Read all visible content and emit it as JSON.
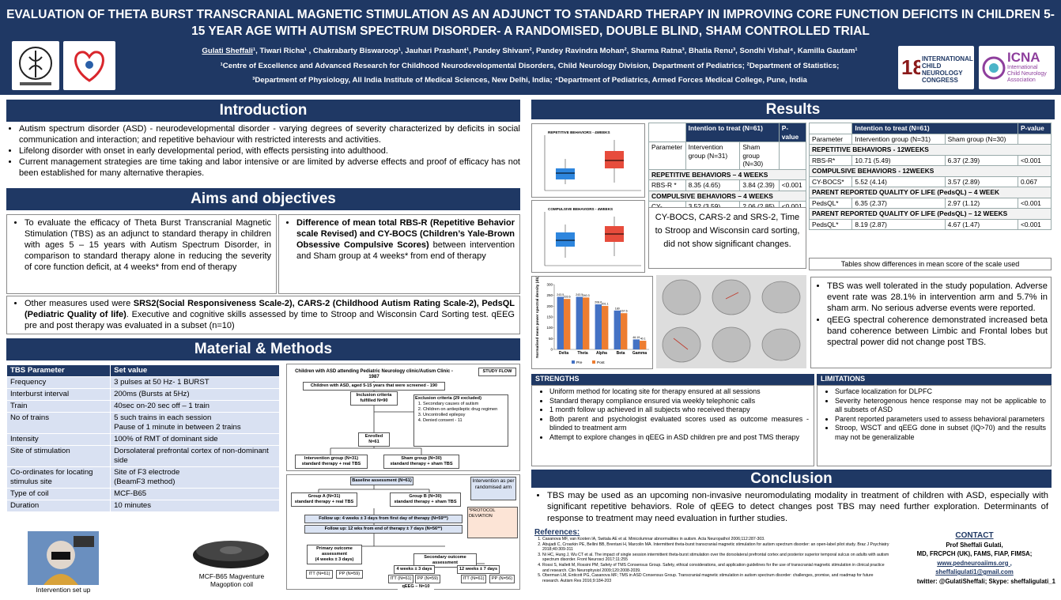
{
  "header": {
    "title": "EVALUATION OF  THETA BURST  TRANSCRANIAL MAGNETIC STIMULATION AS AN ADJUNCT TO STANDARD THERAPY IN IMPROVING CORE FUNCTION DEFICITS IN CHILDREN 5-15 YEAR AGE WITH AUTISM SPECTRUM DISORDER-  A RANDOMISED, DOUBLE BLIND, SHAM CONTROLLED TRIAL",
    "lead_author": "Gulati Sheffali",
    "authors": "¹, Tiwari Richa¹ , Chakrabarty Biswaroop¹, Jauhari Prashant¹, Pandey Shivam², Pandey Ravindra Mohan², Sharma Ratna³, Bhatia Renu³, Sondhi Vishal⁴, Kamilla Gautam¹",
    "affiliation_1": "¹Centre of Excellence and Advanced Research for Childhood Neurodevelopmental Disorders, Child Neurology Division, Department of Pediatrics; ²Department of Statistics;",
    "affiliation_2": "³Department of Physiology, All India Institute of Medical Sciences, New Delhi, India; ⁴Department of Pediatrics, Armed Forces Medical College, Pune, India",
    "congress_logo": "INTERNATIONAL CHILD NEUROLOGY CONGRESS",
    "icna_logo": "ICNA",
    "icna_name": "International Child Neurology Association"
  },
  "introduction": {
    "heading": "Introduction",
    "bullets": [
      "Autism spectrum disorder (ASD) - neurodevelopmental disorder - varying degrees of severity characterized by deficits in social communication and interaction; and repetitive behaviour with restricted interests and activities.",
      "Lifelong disorder with onset in early developmental period, with effects persisting into adulthood.",
      "Current management strategies are time taking and labor intensive or are limited by adverse effects and proof of efficacy has not been established for many alternative therapies."
    ]
  },
  "aims": {
    "heading": "Aims and objectives",
    "primary": "To evaluate the efficacy of Theta Burst Transcranial Magnetic Stimulation (TBS) as an adjunct to standard therapy in children with ages 5 – 15 years with Autism Spectrum Disorder,  in comparison to standard therapy alone in reducing the severity of core function deficit, at 4 weeks*  from end of therapy",
    "outcome_bold": "Difference of mean total RBS-R (Repetitive Behavior scale Revised) and CY-BOCS (Children’s Yale-Brown Obsessive Compulsive Scores)",
    "outcome_rest": " between intervention and Sham group at 4 weeks* from end of therapy",
    "other_start": "Other measures used were ",
    "other_bold": "SRS2(Social Responsiveness Scale-2), CARS-2 (Childhood Autism Rating Scale-2), PedsQL (Pediatric Quality of life)",
    "other_rest": ". Executive and cognitive skills assessed by time to Stroop and Wisconsin Card Sorting test. qEEG pre and post therapy was evaluated in a subset (n=10)"
  },
  "methods": {
    "heading": "Material & Methods",
    "table": [
      [
        "TBS Parameter",
        "Set value"
      ],
      [
        "Frequency",
        "3 pulses at 50 Hz- 1 BURST"
      ],
      [
        "Interburst interval",
        "200ms (Bursts at 5Hz)"
      ],
      [
        "Train",
        "40sec on-20 sec off – 1 train"
      ],
      [
        "No of trains",
        "5 such trains in each session\nPause of 1 minute in between 2 trains"
      ],
      [
        "Intensity",
        "100% of RMT of dominant side"
      ],
      [
        "Site of stimulation",
        "Dorsolateral prefrontal cortex of non-dominant side"
      ],
      [
        "Co-ordinates for locating stimulus site",
        " Site of F3 electrode\n(BeamF3 method)"
      ],
      [
        "Type of coil",
        "MCF-B65"
      ],
      [
        "Duration",
        "10 minutes"
      ]
    ],
    "photo_caption": "Intervention set up",
    "coil_caption": "MCF-B65 Magventure\nMagoption coil",
    "flow1": {
      "top": "Children with ASD attending Pediatric Neurology clinic/Autism Clinic - 1987",
      "label": "STUDY FLOW",
      "screened": "Children with ASD, aged 5-15 years that were screened - 190",
      "inclusion": "Inclusion criteria\nfulfilled N=90",
      "exclusion_title": "Exclusion criteria (29 excluded)",
      "exclusion": [
        "Secondary causes of autism",
        "Children on antiepileptic drug regimen",
        "Uncontrolled epilepsy",
        "Denied consent - 11"
      ],
      "enrolled": "Enrolled\nN=61",
      "intervention": "Intervention group (N=31)\nstandard therapy + real TBS",
      "sham": "Sham group (N=30)\nstandard therapy + sham TBS"
    },
    "flow2": {
      "baseline": "Baseline assessment (N=61)",
      "arm": "Intervention as per randomised arm",
      "group_a": "Group A (N=31)\nstandard therapy + real TBS",
      "group_b": "Group B (N=30)\nstandard therapy + sham TBS",
      "fu1": "Follow up: 4 weeks ± 3 days from first day of therapy (N=59**)",
      "fu2": "Follow up: 12 wks from end of therapy ± 7 days (N=56**)",
      "note": "*PROTOCOL DEVIATION",
      "primary": "Primary outcome assessment\n(4 weeks ± 3 days)",
      "secondary": "Secondary outcome assessment",
      "w4": "4 weeks ± 3 days",
      "w12": "12 weeks ± 7 days",
      "itt1": "ITT (N=61)",
      "pp1": "PP (N=59)",
      "itt2": "ITT (N=61)",
      "pp2": "PP (N=59)",
      "itt3": "ITT (N=61)",
      "pp3": "PP (N=56)",
      "qeeg": "qEEG – N=10"
    }
  },
  "results": {
    "heading": "Results",
    "boxplot_1": "REPETITIVE BEHAVIORS - 4WEEKS",
    "boxplot_2": "COMPULSIVE BEHAVIORS - 4WEEKS",
    "table_head": {
      "itt": "Intention to treat (N=61)",
      "p": "P-value",
      "param": "Parameter",
      "int": "Intervention group (N=31)",
      "sham": "Sham group (N=30)"
    },
    "table_1": [
      {
        "section": "REPETITIVE BEHAVIORS – 4 WEEKS"
      },
      {
        "cells": [
          "RBS-R *",
          "8.35 (4.65)",
          "3.84 (2.39)",
          "<0.001"
        ]
      },
      {
        "section": "COMPULSIVE BEHAVIORS – 4 WEEKS"
      },
      {
        "cells": [
          "CY-BOCS*",
          "3.52 (3.59)",
          "2.06 (2.85)",
          "<0.001"
        ]
      }
    ],
    "table_2": [
      {
        "section": "REPETITIVE BEHAVIORS - 12WEEKS"
      },
      {
        "cells": [
          "RBS-R*",
          "10.71 (5.49)",
          "6.37 (2.39)",
          "<0.001"
        ]
      },
      {
        "section": "COMPULSIVE BEHAVIORS - 12WEEKS"
      },
      {
        "cells": [
          "CY-BOCS*",
          "5.52 (4.14)",
          "3.57 (2.89)",
          "0.067"
        ]
      },
      {
        "section": "PARENT REPORTED QUALITY OF LIFE (PedsQL) – 4 WEEK"
      },
      {
        "cells": [
          "PedsQL*",
          "6.35 (2.37)",
          "2.97 (1.12)",
          "<0.001"
        ]
      },
      {
        "section": "PARENT REPORTED QUALITY OF LIFE (PedsQL) – 12 WEEKS"
      },
      {
        "cells": [
          "PedsQL*",
          "8.19 (2.87)",
          "4.67 (1.47)",
          "<0.001"
        ]
      }
    ],
    "no_change": "CY-BOCS, CARS-2 and SRS-2, Time to Stroop and Wisconsin card sorting, did not show significant changes.",
    "tables_note": "Tables show differences in mean score of the scale used",
    "qeeg_chart": {
      "type": "bar",
      "y_label": "Normalised mean power spectral density (db)",
      "categories": [
        "Delta",
        "Theta",
        "Alpha",
        "Beta",
        "Gamma"
      ],
      "series": [
        {
          "name": "Pre",
          "color": "#4472c4",
          "values": [
            243.5,
            243.5,
            208.6,
            180,
            46.19
          ]
        },
        {
          "name": "Post",
          "color": "#ed7d31",
          "values": [
            233.6,
            240.3,
            201.1,
            167.6,
            40.1
          ]
        }
      ],
      "ylim": [
        0,
        300
      ],
      "yticks": [
        0,
        50,
        100,
        150,
        200,
        250,
        300
      ]
    },
    "bullets": [
      "TBS was well tolerated in the study population. Adverse event rate was 28.1% in intervention arm and 5.7% in sham arm. No serious adverse events were reported.",
      "qEEG spectral coherence demonstrated increased beta band coherence between Limbic and Frontal lobes but spectral power did not change post TBS."
    ],
    "strengths_heading": "STRENGTHS",
    "strengths": [
      "Uniform method for locating site for therapy ensured at all sessions",
      "Standard therapy compliance ensured via weekly telephonic calls",
      "1 month follow up achieved in all subjects who received therapy",
      "Both parent and psychologist evaluated scores used as outcome measures - blinded to treatment arm",
      "Attempt to explore changes in qEEG in ASD children pre and post TMS therapy"
    ],
    "limitations_heading": "LIMITATIONS",
    "limitations": [
      "Surface localization for DLPFC",
      "Severity heterogenous hence response may not be applicable to all subsets of ASD",
      "Parent reported parameters used to assess behavioral parameters",
      "Stroop, WSCT and qEEG done in subset (IQ>70) and the results may not be generalizable"
    ]
  },
  "conclusion": {
    "heading": "Conclusion",
    "text": "TBS may be used as an upcoming non-invasive neuromodulating modality in treatment of children with ASD, especially with significant repetitive behaviors. Role of qEEG to detect changes post TBS may need further exploration. Determinants of response to treatment may need evaluation in further studies."
  },
  "references": {
    "heading": "References:",
    "items": [
      "Casanova MF, van Kooten IA, Switala AE et al. Minicolumnar abnormalities in autism. Acta Neuropathol 2006;112:287-303.",
      "Abujadi C, Croarkin PE, Bellini BB, Brentani H, Marcolin MA. Intermittent theta-burst transcranial magnetic stimulation for autism spectrum disorder: an open-label pilot study. Braz J Psychiatry 2018;40:309-311",
      "Ni HC, Hung J, Wu CT et al. The impact of single session intermittent theta-burst stimulation over the dorsolateral prefrontal cortex and posterior superior temporal sulcus on adults with autism spectrum disorder. Front Neurosci 2017;11:255",
      "Rossi S, Hallett M, Rossini PM; Safety of TMS Consensus Group. Safety, ethical considerations, and application guidelines for the use of transcranial magnetic stimulation in clinical practice and research. Clin Neurophysiol 2009;120:2008-2039.",
      "Oberman LM, Enticott PG, Casanova MF; TMS in ASD Consensus Group. Transcranial magnetic stimulation in autism spectrum disorder: challenges, promise, and roadmap for future research. Autism Res 2016;9:184-203"
    ]
  },
  "contact": {
    "heading": "CONTACT",
    "name": "Prof Sheffali Gulati,",
    "degrees": "MD, FRCPCH (UK), FAMS, FIAP, FIMSA;",
    "web": "www.pedneuroaiims.org ,",
    "email": "sheffaligulati1@gmail.com",
    "social": "twitter: @GulatiSheffali; Skype: sheffaligulati_1"
  }
}
